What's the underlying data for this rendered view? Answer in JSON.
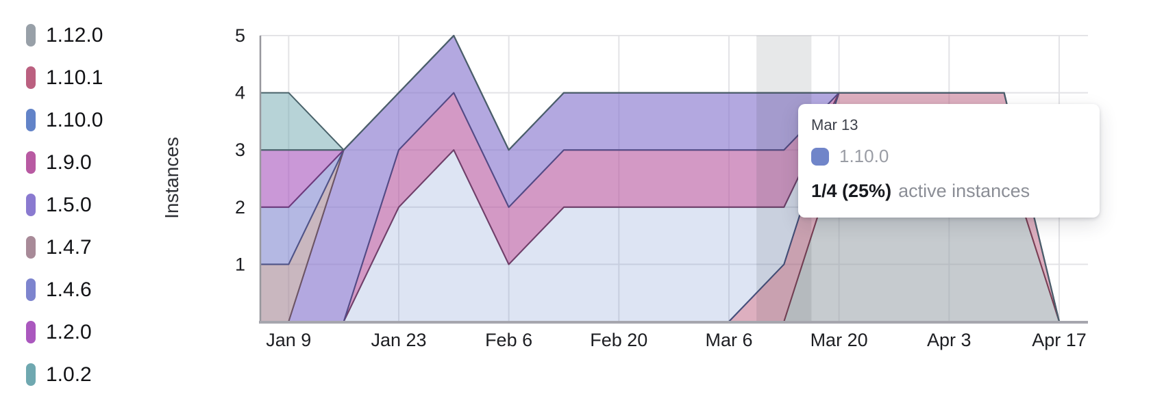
{
  "chart": {
    "y_axis_title": "Instances"
  },
  "legend": {
    "items": [
      {
        "label": "1.12.0",
        "color": "#98a0a8"
      },
      {
        "label": "1.10.1",
        "color": "#bb6080"
      },
      {
        "label": "1.10.0",
        "color": "#6283c8"
      },
      {
        "label": "1.9.0",
        "color": "#b85aa2"
      },
      {
        "label": "1.5.0",
        "color": "#8a7ad0"
      },
      {
        "label": "1.4.7",
        "color": "#a88a98"
      },
      {
        "label": "1.4.6",
        "color": "#7d84ce"
      },
      {
        "label": "1.2.0",
        "color": "#aa58be"
      },
      {
        "label": "1.0.2",
        "color": "#6fa8b0"
      }
    ]
  },
  "chart_data": {
    "type": "area",
    "stacked": true,
    "title": "",
    "xlabel": "",
    "ylabel": "Instances",
    "ylim": [
      0,
      5
    ],
    "grid": true,
    "legend_position": "left",
    "x": [
      "Jan 2",
      "Jan 9",
      "Jan 16",
      "Jan 23",
      "Jan 30",
      "Feb 6",
      "Feb 13",
      "Feb 20",
      "Feb 27",
      "Mar 6",
      "Mar 13",
      "Mar 20",
      "Mar 27",
      "Apr 3",
      "Apr 10",
      "Apr 17"
    ],
    "x_tick_labels": [
      "Jan 9",
      "Jan 23",
      "Feb 6",
      "Feb 20",
      "Mar 6",
      "Mar 20",
      "Apr 3",
      "Apr 17"
    ],
    "x_tick_indices": [
      1,
      3,
      5,
      7,
      9,
      11,
      13,
      15
    ],
    "y_ticks": [
      1,
      2,
      3,
      4,
      5
    ],
    "highlighted_x": "Mar 13",
    "highlighted_index": 10,
    "series": [
      {
        "name": "1.12.0",
        "fill": "rgba(152,160,168,0.55)",
        "stroke": "#656d78",
        "values": [
          0,
          0,
          0,
          0,
          0,
          0,
          0,
          0,
          0,
          0,
          0,
          3,
          3,
          3,
          3,
          0
        ]
      },
      {
        "name": "1.10.1",
        "fill": "rgba(187,96,128,0.50)",
        "stroke": "#7a3e54",
        "values": [
          0,
          0,
          0,
          0,
          0,
          0,
          0,
          0,
          0,
          0,
          1,
          1,
          1,
          1,
          1,
          0
        ]
      },
      {
        "name": "1.10.0",
        "fill": "rgba(98,131,200,0.22)",
        "stroke": "#44517e",
        "values": [
          0,
          0,
          0,
          2,
          3,
          1,
          2,
          2,
          2,
          2,
          1,
          0,
          0,
          0,
          0,
          0
        ]
      },
      {
        "name": "1.9.0",
        "fill": "rgba(184,90,162,0.62)",
        "stroke": "#713f69",
        "values": [
          0,
          0,
          0,
          1,
          1,
          1,
          1,
          1,
          1,
          1,
          1,
          0,
          0,
          0,
          0,
          0
        ]
      },
      {
        "name": "1.5.0",
        "fill": "rgba(138,122,208,0.65)",
        "stroke": "#524b86",
        "values": [
          0,
          0,
          3,
          1,
          1,
          1,
          1,
          1,
          1,
          1,
          1,
          0,
          0,
          0,
          0,
          0
        ]
      },
      {
        "name": "1.4.7",
        "fill": "rgba(168,138,152,0.62)",
        "stroke": "#6d5564",
        "values": [
          1,
          1,
          0,
          0,
          0,
          0,
          0,
          0,
          0,
          0,
          0,
          0,
          0,
          0,
          0,
          0
        ]
      },
      {
        "name": "1.4.6",
        "fill": "rgba(125,132,206,0.58)",
        "stroke": "#4f5489",
        "values": [
          1,
          1,
          0,
          0,
          0,
          0,
          0,
          0,
          0,
          0,
          0,
          0,
          0,
          0,
          0,
          0
        ]
      },
      {
        "name": "1.2.0",
        "fill": "rgba(170,88,190,0.62)",
        "stroke": "#6e3a7c",
        "values": [
          1,
          1,
          0,
          0,
          0,
          0,
          0,
          0,
          0,
          0,
          0,
          0,
          0,
          0,
          0,
          0
        ]
      },
      {
        "name": "1.0.2",
        "fill": "rgba(111,168,176,0.50)",
        "stroke": "#49626a",
        "values": [
          1,
          1,
          0,
          0,
          0,
          0,
          0,
          0,
          0,
          0,
          0,
          0,
          0,
          0,
          0,
          0
        ]
      }
    ]
  },
  "tooltip": {
    "date": "Mar 13",
    "series_label": "1.10.0",
    "swatch_color": "#7085c9",
    "value": "1/4 (25%)",
    "caption": "active instances"
  }
}
